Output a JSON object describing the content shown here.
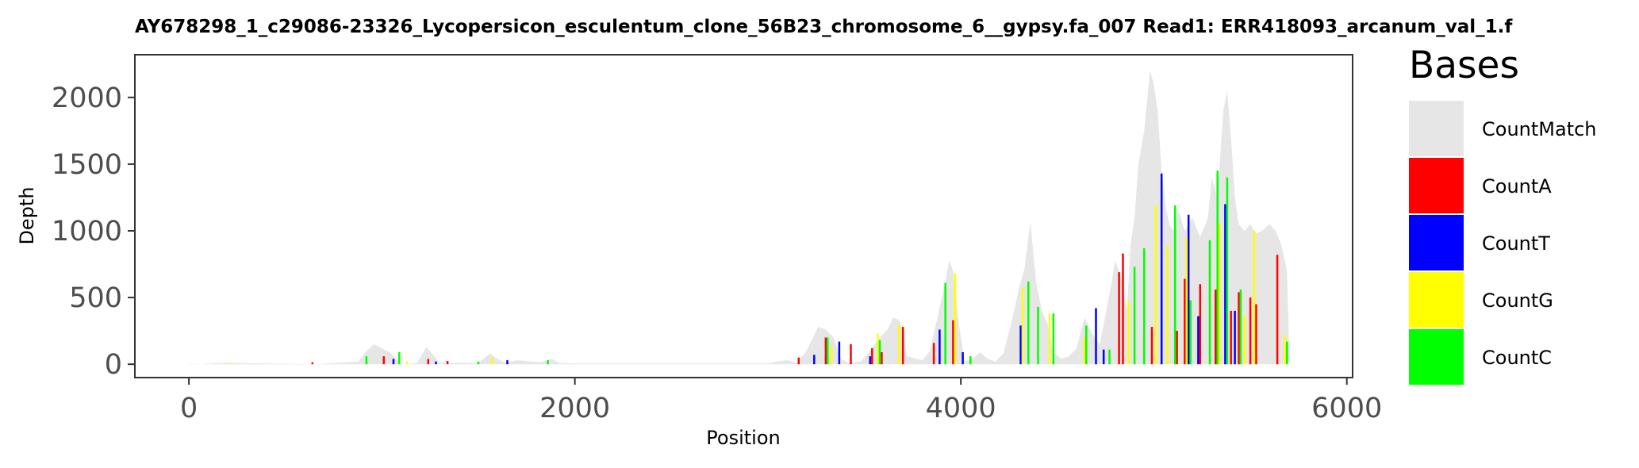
{
  "chart_data": {
    "type": "area",
    "title": "AY678298_1_c29086-23326_Lycopersicon_esculentum_clone_56B23_chromosome_6__gypsy.fa_007   Read1: ERR418093_arcanum_val_1.f",
    "xlabel": "Position",
    "ylabel": "Depth",
    "xlim": [
      -280,
      6030
    ],
    "ylim": [
      -100,
      2320
    ],
    "xticks": [
      0,
      2000,
      4000,
      6000
    ],
    "yticks": [
      0,
      500,
      1000,
      1500,
      2000
    ],
    "xtick_labels": [
      "0",
      "2000",
      "4000",
      "6000"
    ],
    "ytick_labels": [
      "0",
      "500",
      "1000",
      "1500",
      "2000"
    ],
    "grid": false,
    "legend": {
      "title": "Bases",
      "position": "right",
      "entries": [
        {
          "label": "CountMatch",
          "color": "#e6e6e6"
        },
        {
          "label": "CountA",
          "color": "#ff0000"
        },
        {
          "label": "CountT",
          "color": "#0000ff"
        },
        {
          "label": "CountG",
          "color": "#ffff00"
        },
        {
          "label": "CountC",
          "color": "#00ff00"
        }
      ]
    },
    "series": [
      {
        "name": "CountMatch",
        "color": "#e6e6e6",
        "x": [
          0,
          60,
          120,
          180,
          300,
          650,
          880,
          920,
          960,
          1000,
          1040,
          1080,
          1120,
          1180,
          1200,
          1230,
          1260,
          1300,
          1340,
          1360,
          1500,
          1560,
          1600,
          1640,
          1700,
          1820,
          1880,
          1920,
          2000,
          2300,
          2500,
          3000,
          3050,
          3100,
          3150,
          3200,
          3260,
          3300,
          3340,
          3380,
          3420,
          3480,
          3520,
          3580,
          3620,
          3650,
          3680,
          3700,
          3720,
          3800,
          3840,
          3880,
          3920,
          3940,
          3960,
          3990,
          4020,
          4060,
          4100,
          4140,
          4180,
          4220,
          4260,
          4300,
          4330,
          4360,
          4390,
          4420,
          4450,
          4480,
          4520,
          4560,
          4600,
          4640,
          4680,
          4720,
          4740,
          4780,
          4800,
          4830,
          4860,
          4880,
          4900,
          4920,
          4950,
          4980,
          5000,
          5020,
          5040,
          5060,
          5080,
          5100,
          5130,
          5160,
          5200,
          5240,
          5280,
          5300,
          5330,
          5360,
          5380,
          5400,
          5420,
          5440,
          5470,
          5500,
          5530,
          5560,
          5600,
          5630,
          5660,
          5690,
          5700
        ],
        "y": [
          2,
          0,
          5,
          10,
          8,
          0,
          20,
          100,
          150,
          120,
          90,
          30,
          0,
          10,
          50,
          130,
          80,
          10,
          5,
          10,
          10,
          80,
          40,
          10,
          30,
          15,
          40,
          10,
          5,
          5,
          5,
          5,
          20,
          30,
          10,
          100,
          280,
          260,
          200,
          40,
          10,
          20,
          80,
          200,
          260,
          350,
          330,
          250,
          60,
          30,
          100,
          360,
          620,
          780,
          700,
          300,
          20,
          40,
          90,
          40,
          20,
          80,
          300,
          560,
          720,
          1070,
          620,
          400,
          300,
          90,
          40,
          60,
          120,
          350,
          230,
          150,
          300,
          600,
          780,
          650,
          400,
          900,
          1100,
          1500,
          1750,
          2200,
          2100,
          1900,
          1450,
          1200,
          1050,
          1000,
          1150,
          1000,
          1100,
          950,
          1100,
          1400,
          1250,
          1900,
          2050,
          1700,
          1250,
          1050,
          1000,
          1050,
          980,
          1000,
          1050,
          1000,
          900,
          700,
          200
        ]
      },
      {
        "name": "CountA",
        "color": "#ff0000",
        "x": [
          640,
          1010,
          1240,
          1340,
          3160,
          3300,
          3430,
          3540,
          3590,
          3700,
          3860,
          3960,
          4820,
          4840,
          4990,
          5120,
          5160,
          5240,
          5320,
          5400,
          5440,
          5500,
          5530,
          5640
        ],
        "y": [
          15,
          60,
          40,
          25,
          50,
          200,
          150,
          120,
          90,
          280,
          160,
          330,
          690,
          830,
          280,
          250,
          640,
          600,
          560,
          400,
          540,
          500,
          450,
          820
        ]
      },
      {
        "name": "CountT",
        "color": "#0000ff",
        "x": [
          1060,
          1280,
          1650,
          3240,
          3370,
          3530,
          3890,
          4010,
          4310,
          4700,
          4740,
          5040,
          5180,
          5230,
          5370,
          5420
        ],
        "y": [
          40,
          20,
          30,
          70,
          170,
          60,
          260,
          90,
          290,
          420,
          110,
          1430,
          1120,
          360,
          1200,
          400
        ]
      },
      {
        "name": "CountG",
        "color": "#ffff00",
        "x": [
          210,
          1130,
          1570,
          3330,
          3570,
          3680,
          3970,
          4320,
          4460,
          4640,
          4870,
          5010,
          5070,
          5170,
          5290,
          5340,
          5470,
          5520,
          5680
        ],
        "y": [
          10,
          20,
          50,
          140,
          230,
          300,
          680,
          570,
          380,
          200,
          470,
          1190,
          890,
          950,
          800,
          1060,
          370,
          1000,
          220
        ]
      },
      {
        "name": "CountC",
        "color": "#00ff00",
        "x": [
          920,
          1090,
          1500,
          1860,
          3310,
          3580,
          3920,
          4050,
          4350,
          4400,
          4480,
          4650,
          4770,
          4900,
          4950,
          5110,
          5190,
          5290,
          5330,
          5380,
          5450,
          5690
        ],
        "y": [
          60,
          90,
          20,
          30,
          200,
          180,
          610,
          60,
          620,
          430,
          380,
          290,
          110,
          730,
          870,
          1190,
          480,
          930,
          1450,
          1400,
          560,
          170
        ]
      }
    ]
  }
}
